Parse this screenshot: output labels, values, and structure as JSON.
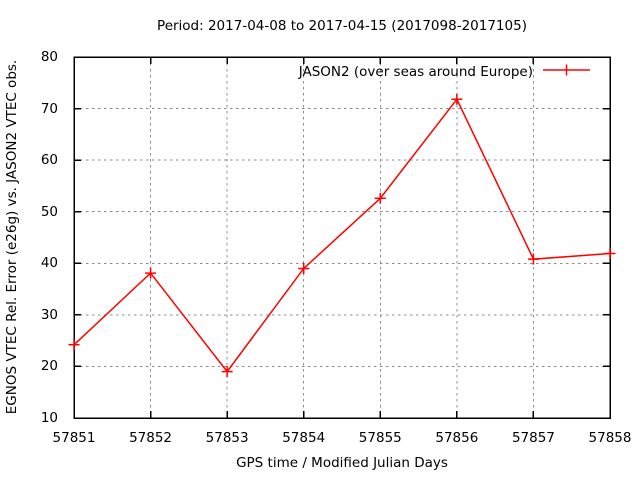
{
  "chart_data": {
    "type": "line",
    "title": "Period: 2017-04-08 to 2017-04-15 (2017098-2017105)",
    "xlabel": "GPS time / Modified Julian Days",
    "ylabel": "EGNOS VTEC Rel. Error (e26g) vs. JASON2 VTEC obs.",
    "x": [
      57851,
      57852,
      57853,
      57854,
      57855,
      57856,
      57857,
      57858
    ],
    "series": [
      {
        "name": "JASON2 (over seas around Europe)",
        "color": "#ff0000",
        "marker": "plus",
        "values": [
          24.2,
          38.1,
          19.0,
          39.0,
          52.6,
          71.8,
          40.8,
          41.9
        ]
      }
    ],
    "xlim": [
      57851,
      57858
    ],
    "ylim": [
      10,
      80
    ],
    "xticks": [
      57851,
      57852,
      57853,
      57854,
      57855,
      57856,
      57857,
      57858
    ],
    "yticks": [
      10,
      20,
      30,
      40,
      50,
      60,
      70,
      80
    ],
    "grid": true,
    "grid_style": "dotted",
    "grid_color": "#8c8c8c",
    "border_color": "#000000",
    "text_color": "#000000",
    "background_color": "#ffffff",
    "legend_position": "top-inside-right"
  }
}
